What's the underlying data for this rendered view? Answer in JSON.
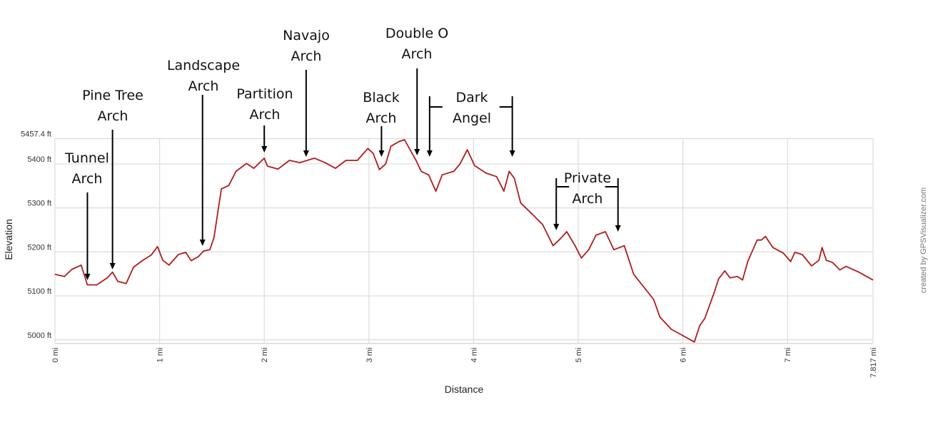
{
  "chart_data": {
    "type": "line",
    "title": "",
    "xlabel": "Distance",
    "ylabel": "Elevation",
    "xlim": [
      0,
      7.817
    ],
    "ylim": [
      4992,
      5457.4
    ],
    "grid": true,
    "line_color": "#b01c1c",
    "x_ticks": [
      "0 mi",
      "1 mi",
      "2 mi",
      "3 mi",
      "4 mi",
      "5 mi",
      "6 mi",
      "7 mi",
      "7.817 mi"
    ],
    "x_tick_values": [
      0,
      1,
      2,
      3,
      4,
      5,
      6,
      7,
      7.817
    ],
    "y_ticks": [
      "5000 ft",
      "5100 ft",
      "5200 ft",
      "5300 ft",
      "5400 ft",
      "5457.4 ft"
    ],
    "y_tick_values": [
      5000,
      5100,
      5200,
      5300,
      5400,
      5457.4
    ],
    "credit": "created by GPSVisualizer.com",
    "series": [
      {
        "x": [
          0,
          0.09,
          0.16,
          0.25,
          0.31,
          0.4,
          0.5,
          0.55,
          0.6,
          0.68,
          0.75,
          0.84,
          0.92,
          0.98,
          1.03,
          1.09,
          1.18,
          1.25,
          1.3,
          1.37,
          1.42,
          1.48,
          1.52,
          1.59,
          1.66,
          1.73,
          1.83,
          1.9,
          2.0,
          2.03,
          2.13,
          2.24,
          2.34,
          2.48,
          2.58,
          2.68,
          2.78,
          2.89,
          2.99,
          3.04,
          3.1,
          3.16,
          3.21,
          3.29,
          3.34,
          3.4,
          3.45,
          3.5,
          3.57,
          3.64,
          3.7,
          3.81,
          3.87,
          3.94,
          4.01,
          4.12,
          4.22,
          4.29,
          4.34,
          4.39,
          4.45,
          4.56,
          4.66,
          4.76,
          4.83,
          4.89,
          4.97,
          5.03,
          5.1,
          5.17,
          5.26,
          5.34,
          5.44,
          5.53,
          5.61,
          5.72,
          5.78,
          5.89,
          5.99,
          6.11,
          6.16,
          6.21,
          6.3,
          6.34,
          6.4,
          6.45,
          6.52,
          6.57,
          6.62,
          6.71,
          6.75,
          6.79,
          6.86,
          6.96,
          7.03,
          7.07,
          7.14,
          7.23,
          7.3,
          7.33,
          7.37,
          7.43,
          7.5,
          7.56,
          7.68,
          7.817
        ],
        "y": [
          5149,
          5144,
          5160,
          5170,
          5125,
          5125,
          5141,
          5154,
          5133,
          5128,
          5165,
          5181,
          5193,
          5212,
          5181,
          5170,
          5194,
          5199,
          5180,
          5189,
          5202,
          5205,
          5233,
          5343,
          5351,
          5383,
          5401,
          5390,
          5413,
          5395,
          5388,
          5408,
          5403,
          5413,
          5403,
          5390,
          5408,
          5408,
          5435,
          5424,
          5387,
          5400,
          5440,
          5451,
          5455,
          5429,
          5408,
          5383,
          5375,
          5338,
          5375,
          5383,
          5400,
          5432,
          5396,
          5379,
          5371,
          5338,
          5383,
          5367,
          5311,
          5286,
          5262,
          5214,
          5230,
          5246,
          5214,
          5186,
          5205,
          5238,
          5246,
          5205,
          5214,
          5149,
          5125,
          5092,
          5052,
          5024,
          5011,
          4995,
          5032,
          5049,
          5108,
          5138,
          5157,
          5141,
          5144,
          5136,
          5178,
          5227,
          5227,
          5235,
          5210,
          5197,
          5178,
          5199,
          5194,
          5168,
          5181,
          5210,
          5181,
          5176,
          5159,
          5167,
          5154,
          5136
        ]
      }
    ],
    "annotations": [
      {
        "label": [
          "Tunnel",
          "Arch"
        ],
        "miles": [
          0.31
        ]
      },
      {
        "label": [
          "Pine Tree",
          "Arch"
        ],
        "miles": [
          0.55
        ]
      },
      {
        "label": [
          "Landscape",
          "Arch"
        ],
        "miles": [
          1.41
        ]
      },
      {
        "label": [
          "Partition",
          "Arch"
        ],
        "miles": [
          2.0
        ]
      },
      {
        "label": [
          "Navajo",
          "Arch"
        ],
        "miles": [
          2.4
        ]
      },
      {
        "label": [
          "Black",
          "Arch"
        ],
        "miles": [
          3.12
        ]
      },
      {
        "label": [
          "Double O",
          "Arch"
        ],
        "miles": [
          3.46
        ]
      },
      {
        "label": [
          "Dark",
          "Angel"
        ],
        "miles": [
          3.58,
          4.37
        ]
      },
      {
        "label": [
          "Private",
          "Arch"
        ],
        "miles": [
          4.79,
          5.38
        ]
      }
    ]
  }
}
